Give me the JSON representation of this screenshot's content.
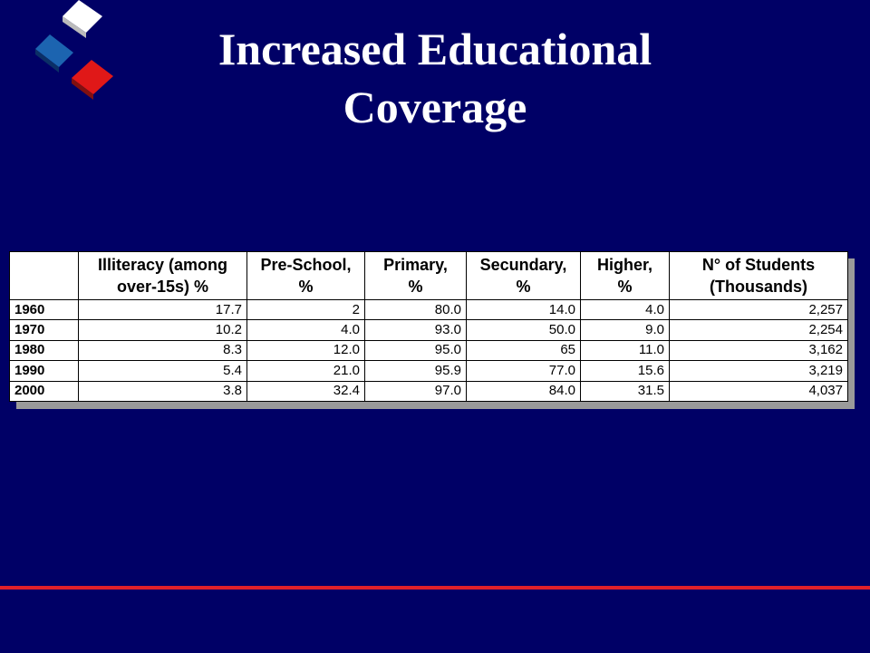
{
  "title": [
    "Increased Educational",
    "Coverage"
  ],
  "table": {
    "header": [
      [
        "Illiteracy (among",
        "over-15s) %"
      ],
      [
        "Pre-School,",
        "%"
      ],
      [
        "Primary,",
        "%"
      ],
      [
        "Secundary,",
        "%"
      ],
      [
        "Higher,",
        "%"
      ],
      [
        "N° of Students",
        "(Thousands)"
      ]
    ],
    "rows": [
      [
        "1960",
        "17.7",
        "2",
        "80.0",
        "14.0",
        "4.0",
        "2,257"
      ],
      [
        "1970",
        "10.2",
        "4.0",
        "93.0",
        "50.0",
        "9.0",
        "2,254"
      ],
      [
        "1980",
        "8.3",
        "12.0",
        "95.0",
        "65",
        "11.0",
        "3,162"
      ],
      [
        "1990",
        "5.4",
        "21.0",
        "95.9",
        "77.0",
        "15.6",
        "3,219"
      ],
      [
        "2000",
        "3.8",
        "32.4",
        "97.0",
        "84.0",
        "31.5",
        "4,037"
      ]
    ]
  }
}
